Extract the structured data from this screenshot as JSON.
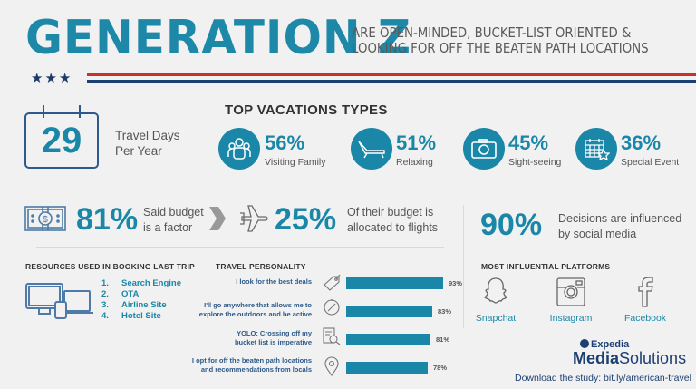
{
  "header": {
    "title": "GENERATION Z",
    "subtitle_line1": "ARE OPEN-MINDED, BUCKET-LIST ORIENTED &",
    "subtitle_line2": "LOOKING FOR OFF THE BEATEN PATH LOCATIONS",
    "stars": "★★★"
  },
  "travel_days": {
    "value": "29",
    "label_line1": "Travel Days",
    "label_line2": "Per Year"
  },
  "vacation_types": {
    "heading": "TOP VACATIONS TYPES",
    "items": [
      {
        "pct": "56%",
        "label": "Visiting Family",
        "icon": "family-icon"
      },
      {
        "pct": "51%",
        "label": "Relaxing",
        "icon": "lounge-chair-icon"
      },
      {
        "pct": "45%",
        "label": "Sight-seeing",
        "icon": "camera-icon"
      },
      {
        "pct": "36%",
        "label": "Special Event",
        "icon": "calendar-star-icon"
      }
    ]
  },
  "budget": {
    "pct": "81%",
    "label_line1": "Said budget",
    "label_line2": "is a factor",
    "flights_pct": "25%",
    "flights_line1": "Of their budget is",
    "flights_line2": "allocated to flights"
  },
  "social": {
    "pct": "90%",
    "label_line1": "Decisions are influenced",
    "label_line2": "by social media"
  },
  "resources": {
    "heading": "RESOURCES USED IN BOOKING LAST TRIP",
    "items": [
      {
        "num": "1.",
        "label": "Search Engine"
      },
      {
        "num": "2.",
        "label": "OTA"
      },
      {
        "num": "3.",
        "label": "Airline Site"
      },
      {
        "num": "4.",
        "label": "Hotel Site"
      }
    ]
  },
  "personality": {
    "heading": "TRAVEL PERSONALITY",
    "items": [
      {
        "line1": "I look for the best deals",
        "line2": "",
        "value": 93,
        "value_label": "93%",
        "icon": "tag-icon"
      },
      {
        "line1": "I'll go anywhere that allows me to",
        "line2": "explore the outdoors and be active",
        "value": 83,
        "value_label": "83%",
        "icon": "compass-icon"
      },
      {
        "line1": "YOLO: Crossing off my",
        "line2": "bucket list is imperative",
        "value": 81,
        "value_label": "81%",
        "icon": "checklist-search-icon"
      },
      {
        "line1": "I opt for off the beaten path locations",
        "line2": "and recommendations from locals",
        "value": 78,
        "value_label": "78%",
        "icon": "map-pin-icon"
      }
    ]
  },
  "platforms": {
    "heading": "MOST INFLUENTIAL PLATFORMS",
    "items": [
      {
        "label": "Snapchat",
        "icon": "snapchat-icon"
      },
      {
        "label": "Instagram",
        "icon": "instagram-icon"
      },
      {
        "label": "Facebook",
        "icon": "facebook-icon"
      }
    ]
  },
  "footer": {
    "logo_top": "Expedia",
    "logo_bold": "Media",
    "logo_rest": "Solutions",
    "download": "Download the study: bit.ly/american-travel"
  },
  "colors": {
    "teal": "#1a87a8",
    "navy": "#1d3f72",
    "red": "#c9312c",
    "background": "#f1f1f1"
  }
}
